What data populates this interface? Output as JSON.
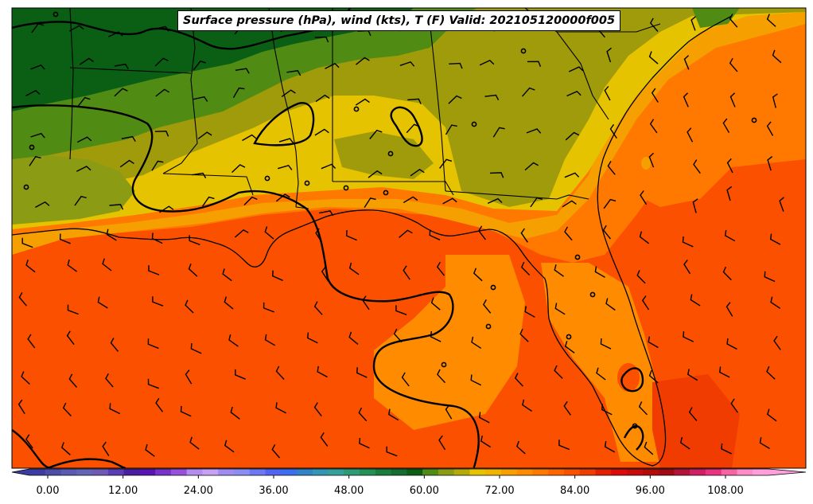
{
  "title": "Surface pressure (hPa), wind (kts), T (F) Valid: 202105120000f005",
  "colorbar": {
    "tick_labels": [
      "0.00",
      "12.00",
      "24.00",
      "36.00",
      "48.00",
      "60.00",
      "72.00",
      "84.00",
      "96.00",
      "108.00"
    ],
    "tick_values": [
      0,
      12,
      24,
      36,
      48,
      60,
      72,
      84,
      96,
      108
    ],
    "min": -6,
    "max": 120,
    "step": 3,
    "extend": "both",
    "colors": [
      "#3c3ca0",
      "#4b4ba8",
      "#5a5ab0",
      "#6464b4",
      "#6e5ab4",
      "#5a3cb4",
      "#4b1ea0",
      "#5a14b4",
      "#7832c8",
      "#9650dc",
      "#b48cf0",
      "#c8a0f5",
      "#a08cf0",
      "#8c8cf5",
      "#6e78f0",
      "#5064f0",
      "#3c6ef0",
      "#3282c8",
      "#3296b4",
      "#32a09b",
      "#2d9b73",
      "#239155",
      "#197d3c",
      "#146e32",
      "#0a5f14",
      "#508c14",
      "#8c9b14",
      "#b4aa0a",
      "#e6c300",
      "#f0b400",
      "#f5a000",
      "#ff8c00",
      "#ff7800",
      "#ff6400",
      "#fa5000",
      "#f03c00",
      "#e61e00",
      "#dc0a0a",
      "#c80a0a",
      "#b40a0a",
      "#a00a14",
      "#b4143c",
      "#d21e64",
      "#eb3282",
      "#f564a0",
      "#ff8cc8",
      "#ffa0dc"
    ]
  },
  "map": {
    "region": "Southeastern United States and Gulf of Mexico",
    "temperature_colors": {
      "cold_north": "#0a5f14",
      "cool": "#508c14",
      "mild": "#8c9b14",
      "warm_land": "#e6c300",
      "gulf_warm": "#ff7800",
      "gulf_hot": "#fa5000",
      "hottest": "#f03c00"
    },
    "isobar_color": "#000000",
    "wind_barb_color": "#000000"
  }
}
